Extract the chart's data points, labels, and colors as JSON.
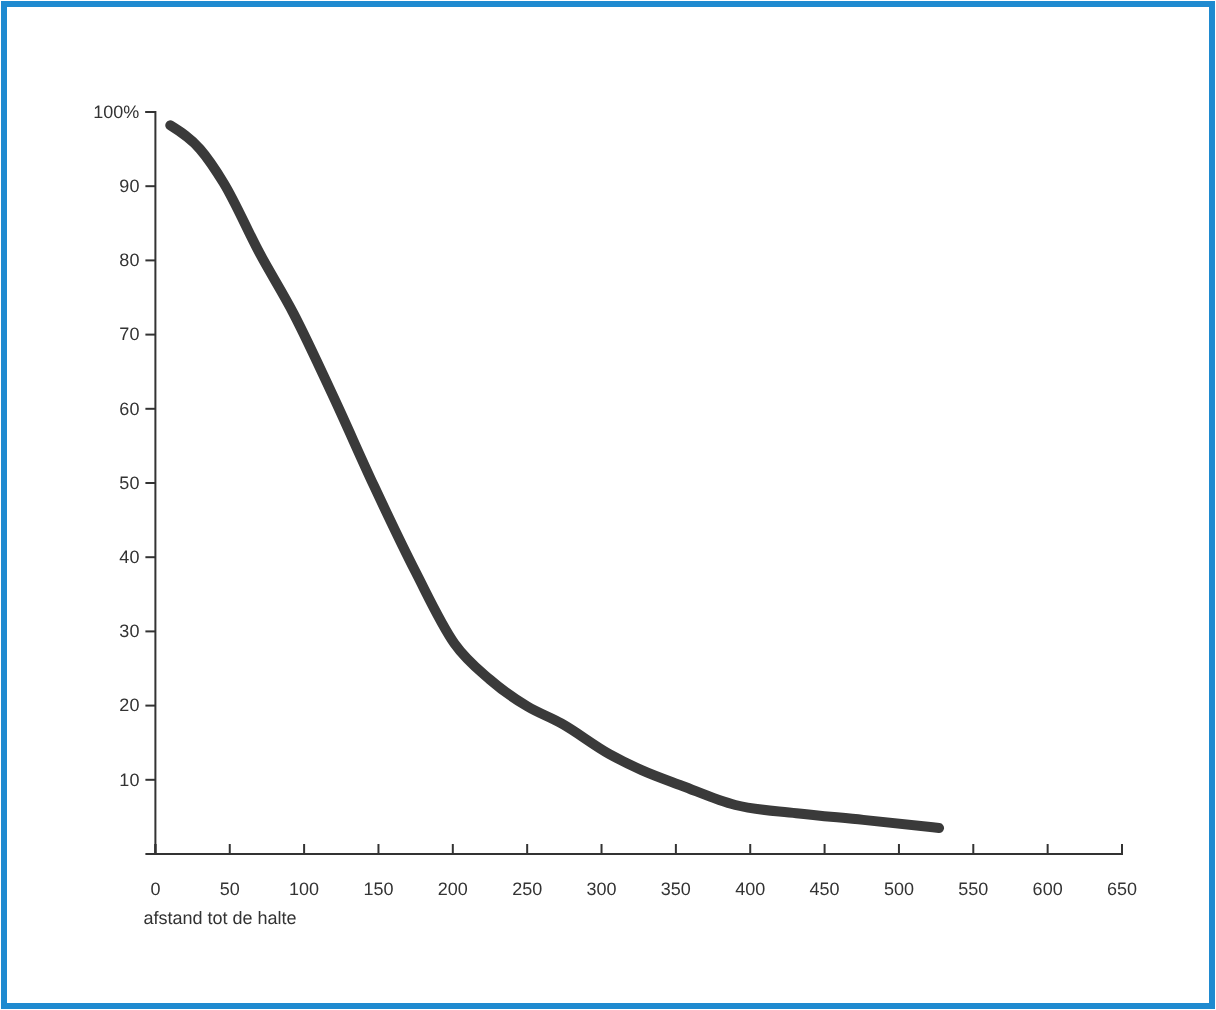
{
  "chart_data": {
    "type": "line",
    "xlabel": "afstand tot de halte",
    "x": [
      10,
      30,
      46,
      70,
      93,
      120,
      147,
      175,
      201,
      225,
      250,
      273,
      305,
      327,
      354,
      390,
      431,
      476,
      527
    ],
    "values": [
      98.2,
      95,
      90.4,
      81,
      72.8,
      61.5,
      49.6,
      38,
      28.4,
      23.5,
      19.9,
      17.6,
      13.5,
      11.3,
      9.2,
      6.6,
      5.5,
      4.6,
      3.5
    ],
    "color": "#3a3a3a",
    "line_style": "solid",
    "marker": "none",
    "xlim": [
      0,
      650
    ],
    "xticks": [
      0,
      50,
      100,
      150,
      200,
      250,
      300,
      350,
      400,
      450,
      500,
      550,
      600,
      650
    ],
    "ylim": [
      0,
      100
    ],
    "yticks": [
      10,
      20,
      30,
      40,
      50,
      60,
      70,
      80,
      90,
      {
        "value": 100,
        "label": "100%"
      }
    ],
    "grid": false
  }
}
